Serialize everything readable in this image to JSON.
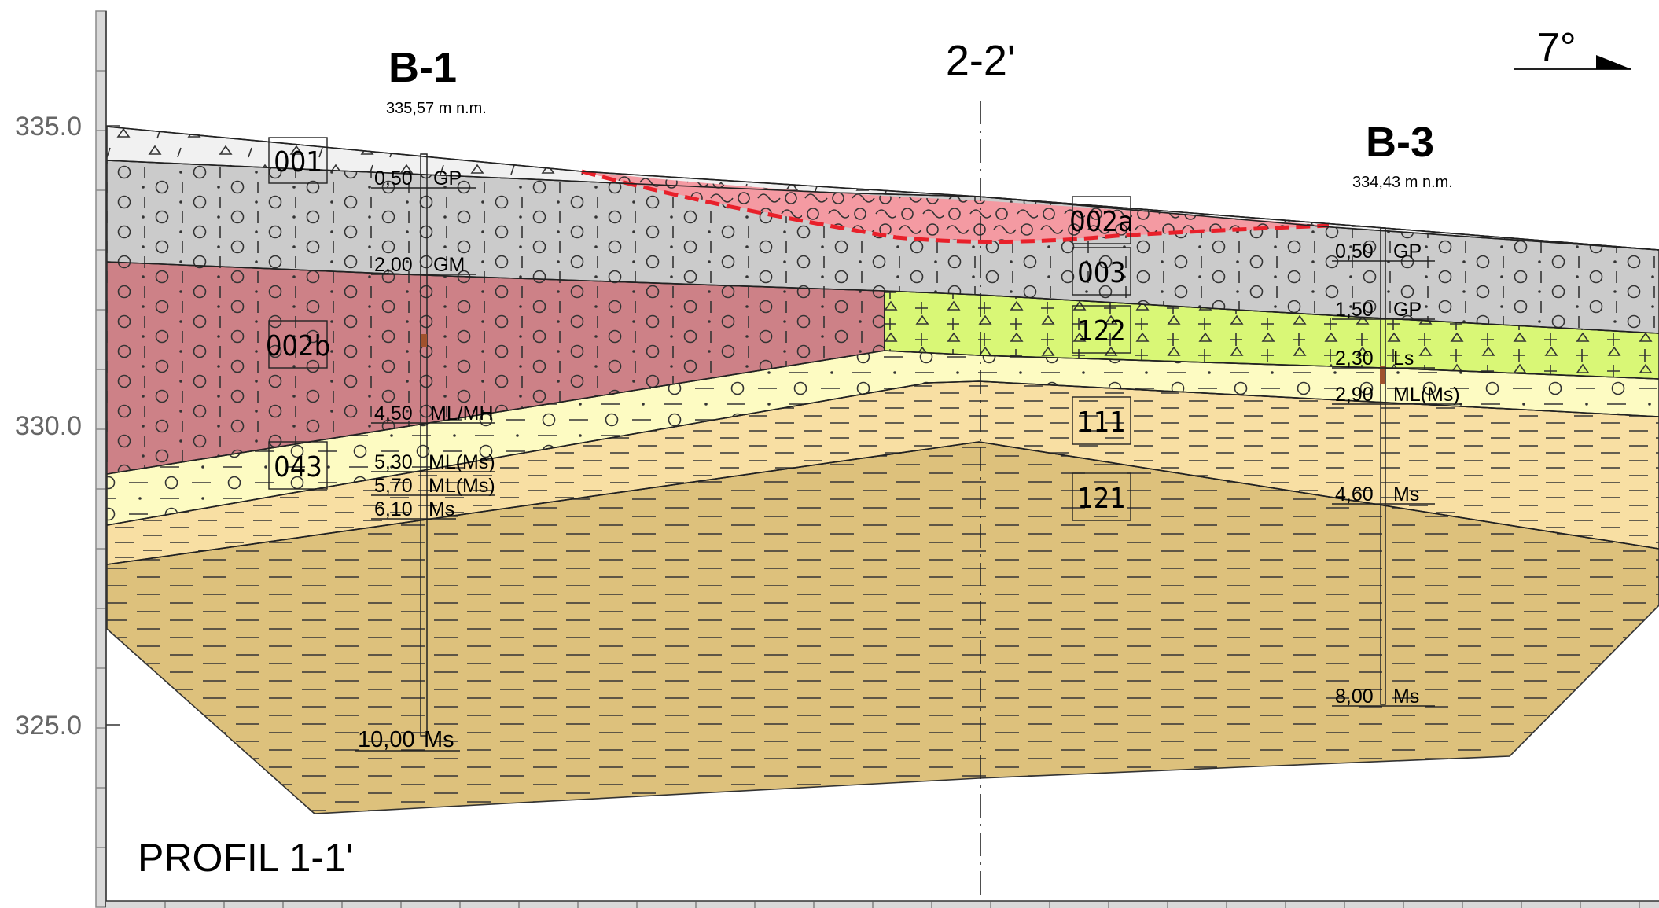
{
  "title": "PROFIL 1-1'",
  "section_marker": "2-2'",
  "orientation": "7°",
  "axis": {
    "ticks": [
      {
        "value": 335.0,
        "label": "335.0"
      },
      {
        "value": 330.0,
        "label": "330.0"
      },
      {
        "value": 325.0,
        "label": "325.0"
      }
    ]
  },
  "boreholes": [
    {
      "name": "B-1",
      "elevation": "335,57 m n.m.",
      "logs": [
        {
          "depth": "0,50",
          "soil": "GP"
        },
        {
          "depth": "2,00",
          "soil": "GM"
        },
        {
          "depth": "4,50",
          "soil": "ML/MH"
        },
        {
          "depth": "5,30",
          "soil": "ML(Ms)"
        },
        {
          "depth": "5,70",
          "soil": "ML(Ms)"
        },
        {
          "depth": "6,10",
          "soil": "Ms"
        },
        {
          "depth": "10,00",
          "soil": "Ms"
        }
      ]
    },
    {
      "name": "B-3",
      "elevation": "334,43 m n.m.",
      "logs": [
        {
          "depth": "0,50",
          "soil": "GP"
        },
        {
          "depth": "1,50",
          "soil": "GP"
        },
        {
          "depth": "2,30",
          "soil": "Ls"
        },
        {
          "depth": "2,90",
          "soil": "ML(Ms)"
        },
        {
          "depth": "4,60",
          "soil": "Ms"
        },
        {
          "depth": "8,00",
          "soil": "Ms"
        }
      ]
    }
  ],
  "units": [
    {
      "id": "001"
    },
    {
      "id": "002a"
    },
    {
      "id": "002b"
    },
    {
      "id": "003"
    },
    {
      "id": "043"
    },
    {
      "id": "122"
    },
    {
      "id": "111"
    },
    {
      "id": "121"
    }
  ],
  "colors": {
    "unit_001": "#f1f1f1",
    "unit_003": "#cbcbcb",
    "unit_002a": "#f49aa2",
    "unit_002b": "#cd8187",
    "unit_122": "#d9f776",
    "unit_043": "#fdfbc2",
    "unit_111": "#f8dfa3",
    "unit_121": "#ddc17c",
    "red_dashed": "#e8202a"
  }
}
